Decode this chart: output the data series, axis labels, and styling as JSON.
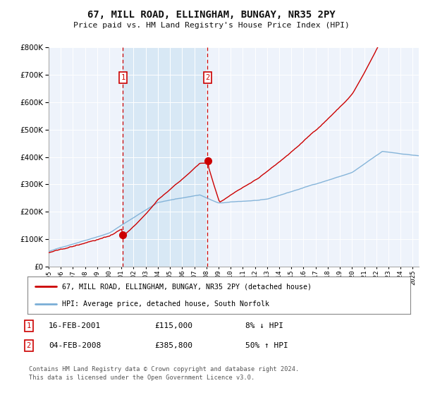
{
  "title": "67, MILL ROAD, ELLINGHAM, BUNGAY, NR35 2PY",
  "subtitle": "Price paid vs. HM Land Registry's House Price Index (HPI)",
  "ylim": [
    0,
    800000
  ],
  "yticks": [
    0,
    100000,
    200000,
    300000,
    400000,
    500000,
    600000,
    700000,
    800000
  ],
  "ytick_labels": [
    "£0",
    "£100K",
    "£200K",
    "£300K",
    "£400K",
    "£500K",
    "£600K",
    "£700K",
    "£800K"
  ],
  "xlim_start": 1995.0,
  "xlim_end": 2025.5,
  "sale1_date": 2001.12,
  "sale1_price": 115000,
  "sale2_date": 2008.09,
  "sale2_price": 385800,
  "line_color_property": "#cc0000",
  "line_color_hpi": "#7aaed6",
  "legend_label_property": "67, MILL ROAD, ELLINGHAM, BUNGAY, NR35 2PY (detached house)",
  "legend_label_hpi": "HPI: Average price, detached house, South Norfolk",
  "sale1_text": "16-FEB-2001",
  "sale1_amount": "£115,000",
  "sale1_hpi_text": "8% ↓ HPI",
  "sale2_text": "04-FEB-2008",
  "sale2_amount": "£385,800",
  "sale2_hpi_text": "50% ↑ HPI",
  "footer": "Contains HM Land Registry data © Crown copyright and database right 2024.\nThis data is licensed under the Open Government Licence v3.0.",
  "background_color": "#ffffff",
  "plot_bg_color": "#eef3fb",
  "grid_color": "#ffffff",
  "shade_color": "#d8e8f5"
}
